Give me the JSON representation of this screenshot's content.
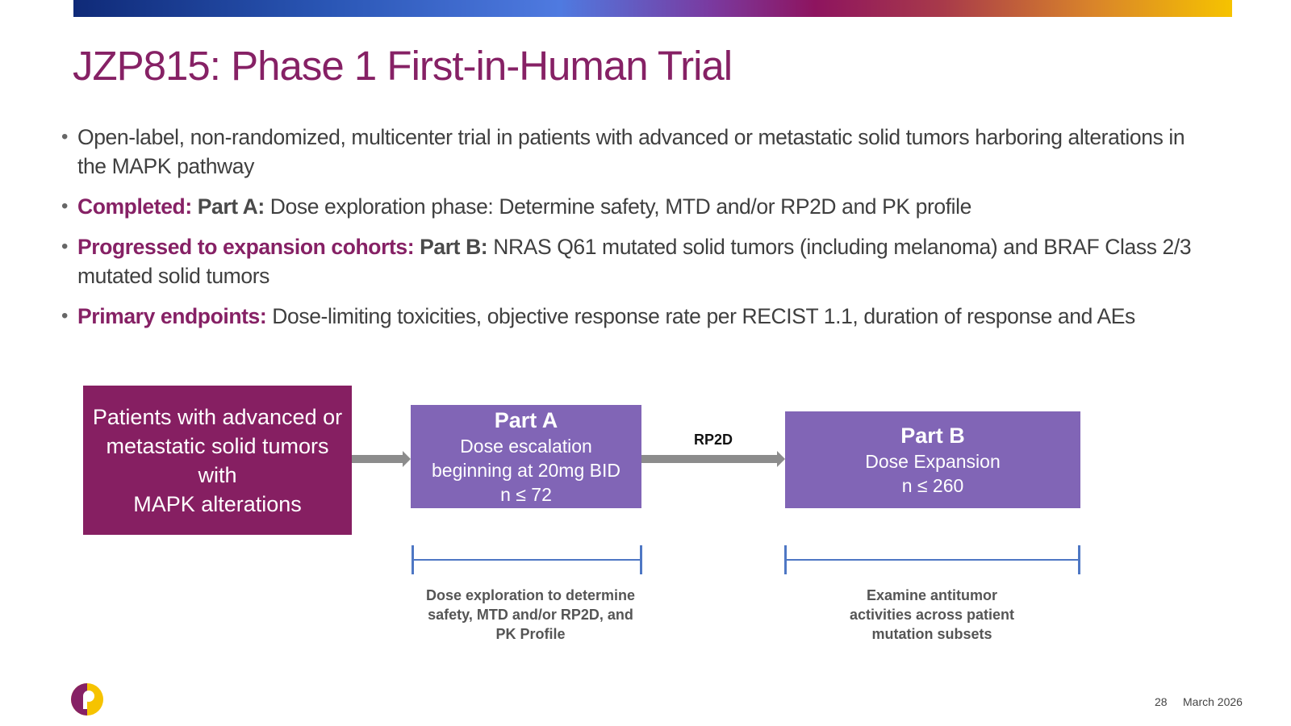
{
  "title": "JZP815: Phase 1 First-in-Human Trial",
  "bullets": [
    {
      "text": "Open-label, non-randomized, multicenter trial in patients with advanced or metastatic solid tumors harboring alterations in the MAPK pathway"
    },
    {
      "label": "Completed:",
      "part": "Part A:",
      "text": "Dose exploration phase: Determine safety, MTD and/or RP2D and PK profile"
    },
    {
      "label": "Progressed to expansion cohorts:",
      "part": "Part B:",
      "text": "NRAS Q61 mutated solid tumors (including melanoma) and BRAF Class 2/3 mutated solid tumors"
    },
    {
      "label": "Primary endpoints:",
      "text": "Dose-limiting toxicities, objective response rate per RECIST 1.1, duration of response and AEs"
    }
  ],
  "diagram": {
    "patients_box": {
      "lines": [
        "Patients with advanced or",
        "metastatic solid tumors with",
        "MAPK alterations"
      ]
    },
    "part_a": {
      "title": "Part A",
      "lines": [
        "Dose escalation",
        "beginning at 20mg BID",
        "n ≤ 72"
      ]
    },
    "arrow_label": "RP2D",
    "part_b": {
      "title": "Part B",
      "lines": [
        "Dose Expansion",
        "n ≤ 260"
      ]
    },
    "caption_a": {
      "lines": [
        "Dose exploration to determine",
        "safety, MTD and/or RP2D, and",
        "PK Profile"
      ]
    },
    "caption_b": {
      "lines": [
        "Examine antitumor",
        "activities across patient",
        "mutation subsets"
      ]
    }
  },
  "footer": {
    "page": "28",
    "date": "March 2026"
  },
  "colors": {
    "brand_purple": "#862165",
    "part_box": "#8165b6",
    "bracket": "#4e77c4",
    "logo_yellow": "#f6c300"
  }
}
